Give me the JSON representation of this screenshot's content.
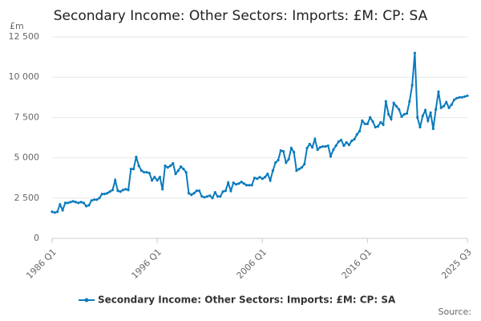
{
  "chart_data": {
    "type": "line",
    "title": "Secondary Income: Other Sectors: Imports: £M: CP: SA",
    "y_unit": "£m",
    "source": "Source:",
    "categories": [
      "1986 Q1",
      null,
      null,
      null,
      null,
      null,
      null,
      null,
      null,
      null,
      null,
      null,
      null,
      null,
      null,
      null,
      null,
      null,
      null,
      null,
      null,
      null,
      null,
      null,
      null,
      null,
      null,
      null,
      null,
      null,
      null,
      null,
      null,
      null,
      null,
      null,
      null,
      null,
      null,
      null,
      "1996 Q1",
      null,
      null,
      null,
      null,
      null,
      null,
      null,
      null,
      null,
      null,
      null,
      null,
      null,
      null,
      null,
      null,
      null,
      null,
      null,
      null,
      null,
      null,
      null,
      null,
      null,
      null,
      null,
      null,
      null,
      null,
      null,
      null,
      null,
      null,
      null,
      null,
      null,
      null,
      null,
      "2006 Q1",
      null,
      null,
      null,
      null,
      null,
      null,
      null,
      null,
      null,
      null,
      null,
      null,
      null,
      null,
      null,
      null,
      null,
      null,
      null,
      null,
      null,
      null,
      null,
      null,
      null,
      null,
      null,
      null,
      null,
      null,
      null,
      null,
      null,
      null,
      null,
      null,
      null,
      null,
      null,
      "2016 Q1",
      null,
      null,
      null,
      null,
      null,
      null,
      null,
      null,
      null,
      null,
      null,
      null,
      null,
      null,
      null,
      null,
      null,
      null,
      null,
      null,
      null,
      null,
      null,
      null,
      null,
      null,
      null,
      null,
      null,
      null,
      null,
      null,
      null,
      null,
      null,
      null,
      null,
      "2025 Q3"
    ],
    "series": [
      {
        "name": "Secondary Income: Other Sectors: Imports: £M: CP: SA",
        "color": "#0a7bbd",
        "values": [
          1650,
          1600,
          1650,
          2100,
          1750,
          2200,
          2200,
          2250,
          2300,
          2250,
          2200,
          2250,
          2200,
          2000,
          2050,
          2350,
          2400,
          2400,
          2500,
          2750,
          2750,
          2800,
          2900,
          3000,
          3600,
          2950,
          2900,
          3000,
          3050,
          3000,
          4300,
          4300,
          5050,
          4500,
          4200,
          4100,
          4100,
          4050,
          3600,
          3800,
          3600,
          3800,
          3050,
          4500,
          4400,
          4500,
          4650,
          4000,
          4200,
          4450,
          4300,
          4100,
          2800,
          2700,
          2800,
          2950,
          2950,
          2600,
          2550,
          2600,
          2650,
          2500,
          2850,
          2600,
          2600,
          2900,
          2950,
          3450,
          2950,
          3450,
          3350,
          3400,
          3500,
          3400,
          3300,
          3300,
          3300,
          3750,
          3700,
          3800,
          3700,
          3800,
          4000,
          3600,
          4200,
          4700,
          4850,
          5450,
          5400,
          4700,
          4900,
          5600,
          5350,
          4200,
          4300,
          4400,
          4600,
          5600,
          5850,
          5650,
          6150,
          5500,
          5650,
          5700,
          5700,
          5750,
          5100,
          5500,
          5750,
          6000,
          6100,
          5750,
          5950,
          5800,
          6050,
          6150,
          6450,
          6650,
          7300,
          7100,
          7100,
          7500,
          7250,
          6900,
          6950,
          7200,
          7050,
          8500,
          7700,
          7400,
          8400,
          8200,
          8000,
          7550,
          7700,
          7750,
          8500,
          9500,
          11500,
          7500,
          6900,
          7600,
          7950,
          7300,
          7800,
          6800,
          8000,
          9100,
          8100,
          8200,
          8450,
          8100,
          8300,
          8600,
          8700,
          8750,
          8750,
          8800,
          8850
        ]
      }
    ],
    "ylim": [
      0,
      12500
    ],
    "yticks": [
      0,
      {
        "value": 2500,
        "label": "2 500"
      },
      {
        "value": 5000,
        "label": "5 000"
      },
      {
        "value": 7500,
        "label": "7 500"
      },
      {
        "value": 10000,
        "label": "10 000"
      },
      {
        "value": 12500,
        "label": "12 500"
      }
    ],
    "grid": true
  }
}
